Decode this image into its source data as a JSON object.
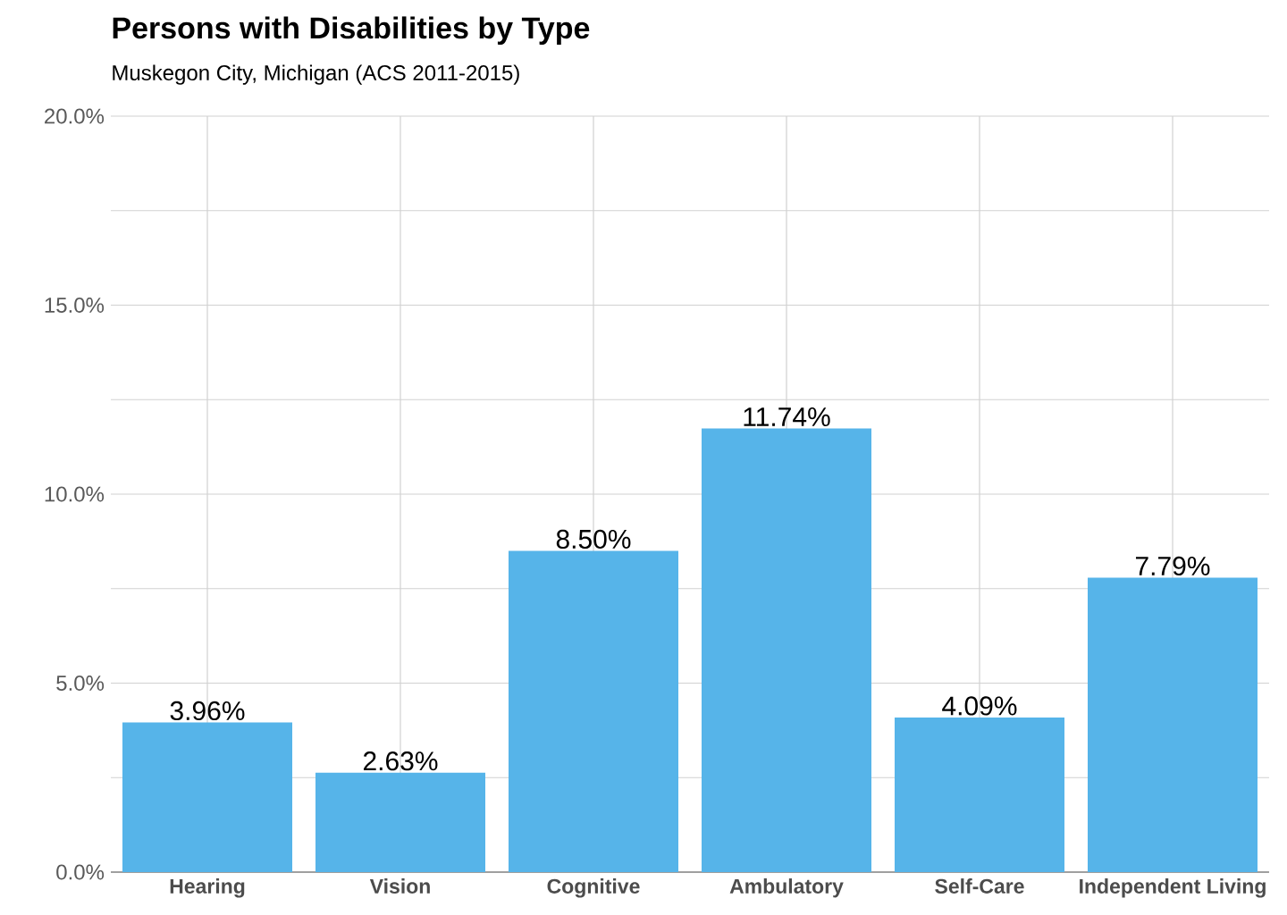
{
  "chart_data": {
    "type": "bar",
    "title": "Persons with Disabilities by Type",
    "subtitle": "Muskegon City,  Michigan  (ACS 2011-2015)",
    "categories": [
      "Hearing",
      "Vision",
      "Cognitive",
      "Ambulatory",
      "Self-Care",
      "Independent Living"
    ],
    "values": [
      3.96,
      2.63,
      8.5,
      11.74,
      4.09,
      7.79
    ],
    "value_labels": [
      "3.96%",
      "2.63%",
      "8.50%",
      "11.74%",
      "4.09%",
      "7.79%"
    ],
    "color": "#56b4e9",
    "ylim": [
      0,
      20
    ],
    "yticks": [
      {
        "value": 0,
        "label": "0.0%"
      },
      {
        "value": 2.5,
        "label": null
      },
      {
        "value": 5,
        "label": "5.0%"
      },
      {
        "value": 7.5,
        "label": null
      },
      {
        "value": 10,
        "label": "10.0%"
      },
      {
        "value": 12.5,
        "label": null
      },
      {
        "value": 15,
        "label": "15.0%"
      },
      {
        "value": 17.5,
        "label": null
      },
      {
        "value": 20,
        "label": "20.0%"
      }
    ],
    "grid": true
  }
}
